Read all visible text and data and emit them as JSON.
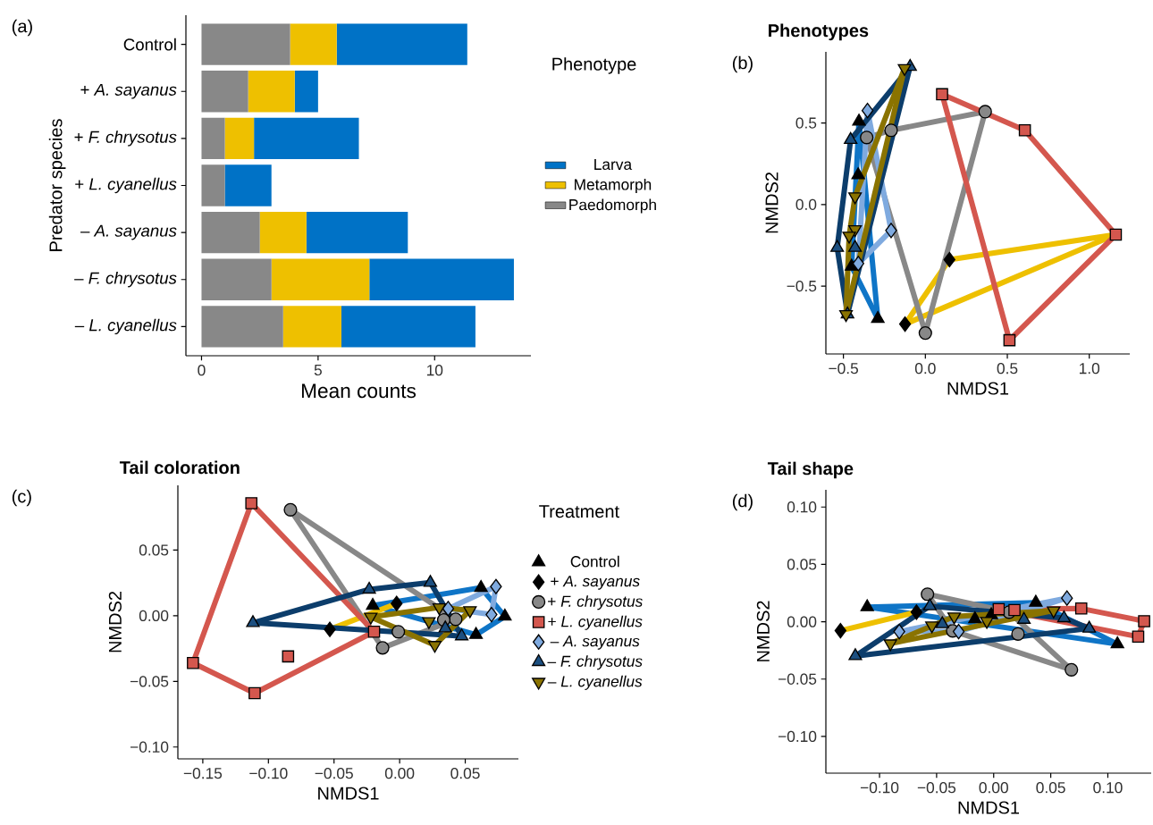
{
  "chart_data": [
    {
      "type": "bar",
      "orientation": "horizontal",
      "stacked": true,
      "annotations": [
        "(a)"
      ],
      "xlabel": "Mean counts",
      "ylabel": "Predator species",
      "legend_title": "Phenotype",
      "legend": "right",
      "categories": [
        "Control",
        "+ *A. sayanus*",
        "+ *F. chrysotus*",
        "+ *L. cyanellus*",
        "– *A. sayanus*",
        "– *F. chrysotus*",
        "– *L. cyanellus*"
      ],
      "xlim": [
        -0.67,
        14.13
      ],
      "xticks": [
        0,
        5,
        10
      ],
      "series": [
        {
          "name": "Paedomorph",
          "color": "#888888",
          "values": [
            3.8,
            2.0,
            1.0,
            1.0,
            2.5,
            3.0,
            3.5
          ]
        },
        {
          "name": "Metamorph",
          "color": "#eec000",
          "values": [
            2.0,
            2.0,
            1.25,
            0,
            2.0,
            4.2,
            2.5
          ]
        },
        {
          "name": "Larva",
          "color": "#0072c6",
          "values": [
            5.6,
            1.0,
            4.5,
            2.0,
            4.35,
            6.2,
            5.75
          ]
        }
      ]
    },
    {
      "type": "scatter",
      "annotations": [
        "(b)"
      ],
      "title": "Phenotypes",
      "xlabel": "NMDS1",
      "ylabel": "NMDS2",
      "xlim": [
        -0.607,
        1.247
      ],
      "ylim": [
        -0.916,
        0.936
      ],
      "xticks": [
        {
          "value": -0.5,
          "label": "−0.5"
        },
        {
          "value": 0,
          "label": "0.0"
        },
        {
          "value": 0.5,
          "label": "0.5"
        },
        {
          "value": 1,
          "label": "1.0"
        }
      ],
      "yticks": [
        {
          "value": -0.5,
          "label": "−0.5"
        },
        {
          "value": 0,
          "label": "0.0"
        },
        {
          "value": 0.5,
          "label": "0.5"
        }
      ],
      "series": [
        {
          "type": "line",
          "color": "#0f75c7",
          "marker": "none",
          "x": [
            -0.45,
            -0.405,
            -0.29
          ],
          "values": [
            -0.38,
            0.51,
            -0.7
          ]
        },
        {
          "type": "line",
          "color": "#0f75c7",
          "marker": "none",
          "x": [
            -0.45,
            -0.29
          ],
          "values": [
            -0.38,
            -0.7
          ]
        },
        {
          "type": "line",
          "color": "#eec000",
          "marker": "none",
          "x": [
            -0.124,
            0.147,
            1.16
          ],
          "values": [
            -0.733,
            -0.338,
            -0.185
          ]
        },
        {
          "type": "line",
          "color": "#eec000",
          "marker": "none",
          "x": [
            -0.124,
            1.16
          ],
          "values": [
            -0.733,
            -0.185
          ]
        },
        {
          "type": "line",
          "color": "#888888",
          "marker": "none",
          "x": [
            -0.358,
            -0.209,
            0.365
          ],
          "values": [
            0.411,
            0.455,
            0.569
          ]
        },
        {
          "type": "line",
          "color": "#888888",
          "marker": "none",
          "x": [
            -0.358,
            0.0,
            0.365
          ],
          "values": [
            0.411,
            -0.788,
            0.569
          ]
        },
        {
          "type": "line",
          "color": "#d4574e",
          "marker": "none",
          "x": [
            0.102,
            0.607,
            1.162
          ],
          "values": [
            0.676,
            0.455,
            -0.185
          ]
        },
        {
          "type": "line",
          "color": "#d4574e",
          "marker": "none",
          "x": [
            0.102,
            0.513,
            1.162
          ],
          "values": [
            0.676,
            -0.832,
            -0.185
          ]
        },
        {
          "type": "line",
          "color": "#7faadf",
          "marker": "none",
          "x": [
            -0.409,
            -0.353,
            -0.209
          ],
          "values": [
            -0.362,
            0.576,
            -0.159
          ]
        },
        {
          "type": "line",
          "color": "#7faadf",
          "marker": "none",
          "x": [
            -0.409,
            -0.209
          ],
          "values": [
            -0.362,
            -0.159
          ]
        },
        {
          "type": "line",
          "color": "#0c3d6b",
          "marker": "none",
          "x": [
            -0.538,
            -0.456,
            -0.093
          ],
          "values": [
            -0.265,
            0.397,
            0.845
          ]
        },
        {
          "type": "line",
          "color": "#0c3d6b",
          "marker": "none",
          "x": [
            -0.538,
            -0.475,
            -0.093
          ],
          "values": [
            -0.265,
            -0.673,
            0.845
          ]
        },
        {
          "type": "line",
          "color": "#8a7300",
          "marker": "none",
          "x": [
            -0.484,
            -0.465,
            -0.429,
            -0.127
          ],
          "values": [
            -0.673,
            -0.192,
            0.049,
            0.835
          ]
        },
        {
          "type": "line",
          "color": "#8a7300",
          "marker": "none",
          "x": [
            -0.484,
            -0.127
          ],
          "values": [
            -0.673,
            0.835
          ]
        },
        {
          "type": "scatter",
          "color": "#000000",
          "marker": "triangle",
          "x": [
            -0.405,
            -0.41,
            -0.45,
            -0.29
          ],
          "values": [
            0.51,
            0.18,
            -0.38,
            -0.7
          ]
        },
        {
          "type": "scatter",
          "color": "#000000",
          "marker": "diamond",
          "x": [
            -0.124,
            0.147
          ],
          "values": [
            -0.733,
            -0.338
          ]
        },
        {
          "type": "scatter",
          "color": "#888888",
          "marker": "circle",
          "x": [
            -0.358,
            -0.209,
            0.365,
            0.0
          ],
          "values": [
            0.411,
            0.455,
            0.569,
            -0.788
          ]
        },
        {
          "type": "scatter",
          "color": "#d4574e",
          "marker": "square",
          "x": [
            0.102,
            0.607,
            1.162,
            0.513
          ],
          "values": [
            0.676,
            0.455,
            -0.185,
            -0.832
          ]
        },
        {
          "type": "scatter",
          "color": "#7faadf",
          "marker": "diamond",
          "x": [
            -0.353,
            -0.209,
            -0.409
          ],
          "values": [
            0.576,
            -0.159,
            -0.362
          ]
        },
        {
          "type": "scatter",
          "color": "#1c4f80",
          "marker": "triangle",
          "x": [
            -0.093,
            -0.456,
            -0.538,
            -0.429,
            -0.475
          ],
          "values": [
            0.845,
            0.397,
            -0.265,
            -0.265,
            -0.673
          ]
        },
        {
          "type": "scatter",
          "color": "#8a7300",
          "marker": "triangle-down",
          "x": [
            -0.127,
            -0.429,
            -0.429,
            -0.465,
            -0.484
          ],
          "values": [
            0.835,
            0.049,
            -0.152,
            -0.192,
            -0.673
          ]
        }
      ]
    },
    {
      "type": "scatter",
      "annotations": [
        "(c)"
      ],
      "title": "Tail coloration",
      "xlabel": "NMDS1",
      "ylabel": "NMDS2",
      "legend": "right",
      "legend_title": "Treatment",
      "xlim": [
        -0.169,
        0.0905
      ],
      "ylim": [
        -0.109,
        0.0993
      ],
      "xticks": [
        {
          "value": -0.15,
          "label": "−0.15"
        },
        {
          "value": -0.1,
          "label": "−0.10"
        },
        {
          "value": -0.05,
          "label": "−0.05"
        },
        {
          "value": 0,
          "label": "0.00"
        },
        {
          "value": 0.05,
          "label": "0.05"
        }
      ],
      "yticks": [
        {
          "value": -0.1,
          "label": "−0.10"
        },
        {
          "value": -0.05,
          "label": "−0.05"
        },
        {
          "value": 0,
          "label": "0.00"
        },
        {
          "value": 0.05,
          "label": "0.05"
        }
      ],
      "series": [
        {
          "type": "line",
          "color": "#0f75c7",
          "marker": "none",
          "x": [
            -0.0205,
            0.062,
            0.0802
          ],
          "values": [
            0.0077,
            0.0213,
            -0.0005
          ]
        },
        {
          "type": "line",
          "color": "#0f75c7",
          "marker": "none",
          "x": [
            -0.0205,
            0.0582,
            0.0802
          ],
          "values": [
            0.0077,
            -0.0145,
            -0.0005
          ]
        },
        {
          "type": "line",
          "color": "#eec000",
          "marker": "none",
          "x": [
            -0.0532,
            -0.0023
          ],
          "values": [
            -0.0104,
            0.0093
          ]
        },
        {
          "type": "line",
          "color": "#888888",
          "marker": "none",
          "x": [
            -0.0832,
            0.0427
          ],
          "values": [
            0.0807,
            -0.0027
          ]
        },
        {
          "type": "line",
          "color": "#888888",
          "marker": "none",
          "x": [
            -0.0832,
            -0.013,
            0.0427
          ],
          "values": [
            0.0807,
            -0.0245,
            -0.0027
          ]
        },
        {
          "type": "line",
          "color": "#d4574e",
          "marker": "none",
          "x": [
            -0.1575,
            -0.113,
            -0.0195
          ],
          "values": [
            -0.036,
            0.0857,
            -0.0122
          ]
        },
        {
          "type": "line",
          "color": "#d4574e",
          "marker": "none",
          "x": [
            -0.1575,
            -0.1105,
            -0.0195
          ],
          "values": [
            -0.036,
            -0.059,
            -0.0122
          ]
        },
        {
          "type": "line",
          "color": "#7faadf",
          "marker": "none",
          "x": [
            0.037,
            0.0734
          ],
          "values": [
            0.0054,
            0.0222
          ]
        },
        {
          "type": "line",
          "color": "#7faadf",
          "marker": "none",
          "x": [
            0.037,
            0.07,
            0.0734
          ],
          "values": [
            0.0054,
            0.0009,
            0.0222
          ]
        },
        {
          "type": "line",
          "color": "#0c3d6b",
          "marker": "none",
          "x": [
            -0.1118,
            -0.0232,
            0.0234,
            0.0473
          ],
          "values": [
            -0.0054,
            0.02,
            0.0252,
            -0.0156
          ]
        },
        {
          "type": "line",
          "color": "#0c3d6b",
          "marker": "none",
          "x": [
            -0.1118,
            0.0473
          ],
          "values": [
            -0.0054,
            -0.0156
          ]
        },
        {
          "type": "line",
          "color": "#8a7300",
          "marker": "none",
          "x": [
            -0.022,
            0.0302,
            0.0536
          ],
          "values": [
            -0.0009,
            0.0063,
            0.0041
          ]
        },
        {
          "type": "line",
          "color": "#8a7300",
          "marker": "none",
          "x": [
            -0.022,
            0.0268,
            0.0536
          ],
          "values": [
            -0.0009,
            -0.0224,
            0.0041
          ]
        },
        {
          "name": "Control",
          "type": "scatter",
          "color": "#000000",
          "marker": "triangle",
          "x": [
            -0.0205,
            0.062,
            0.0802,
            0.0582
          ],
          "values": [
            0.0077,
            0.0213,
            -0.0005,
            -0.0145
          ]
        },
        {
          "name": "+ *A. sayanus*",
          "type": "scatter",
          "color": "#000000",
          "marker": "diamond",
          "x": [
            -0.0532,
            -0.0023
          ],
          "values": [
            -0.0104,
            0.0093
          ]
        },
        {
          "name": "+ *F. chrysotus*",
          "type": "scatter",
          "color": "#888888",
          "marker": "circle",
          "x": [
            -0.0832,
            0.0427,
            -0.013,
            -0.001,
            0.0336
          ],
          "values": [
            0.0807,
            -0.0027,
            -0.0245,
            -0.0122,
            -0.0032
          ]
        },
        {
          "name": "+ *L. cyanellus*",
          "type": "scatter",
          "color": "#d4574e",
          "marker": "square",
          "x": [
            -0.113,
            -0.0195,
            -0.1105,
            -0.1575,
            -0.085
          ],
          "values": [
            0.0857,
            -0.0122,
            -0.059,
            -0.036,
            -0.031
          ]
        },
        {
          "name": "– *A. sayanus*",
          "type": "scatter",
          "color": "#7faadf",
          "marker": "diamond",
          "x": [
            0.037,
            0.0734,
            0.07
          ],
          "values": [
            0.0054,
            0.0222,
            0.0009
          ]
        },
        {
          "name": "– *F. chrysotus*",
          "type": "scatter",
          "color": "#1c4f80",
          "marker": "triangle",
          "x": [
            -0.1118,
            -0.0232,
            0.0234,
            0.0473,
            0.0348
          ],
          "values": [
            -0.0054,
            0.02,
            0.0252,
            -0.0156,
            -0.0095
          ]
        },
        {
          "name": "– *L. cyanellus*",
          "type": "scatter",
          "color": "#8a7300",
          "marker": "triangle-down",
          "x": [
            -0.022,
            0.0302,
            0.0536,
            0.0268,
            0.0223
          ],
          "values": [
            -0.0009,
            0.0063,
            0.0041,
            -0.0224,
            -0.0043
          ]
        }
      ]
    },
    {
      "type": "scatter",
      "annotations": [
        "(d)"
      ],
      "title": "Tail shape",
      "xlabel": "NMDS1",
      "ylabel": "NMDS2",
      "xlim": [
        -0.147,
        0.138
      ],
      "ylim": [
        -0.132,
        0.115
      ],
      "xticks": [
        {
          "value": -0.1,
          "label": "−0.10"
        },
        {
          "value": -0.05,
          "label": "−0.05"
        },
        {
          "value": 0,
          "label": "0.00"
        },
        {
          "value": 0.05,
          "label": "0.05"
        },
        {
          "value": 0.1,
          "label": "0.10"
        }
      ],
      "yticks": [
        {
          "value": -0.1,
          "label": "−0.10"
        },
        {
          "value": -0.05,
          "label": "−0.05"
        },
        {
          "value": 0,
          "label": "0.00"
        },
        {
          "value": 0.05,
          "label": "0.05"
        },
        {
          "value": 0.1,
          "label": "0.10"
        }
      ],
      "series": [
        {
          "type": "line",
          "color": "#0f75c7",
          "marker": "none",
          "x": [
            -0.1108,
            0.0369,
            0.1084
          ],
          "values": [
            0.0128,
            0.0167,
            -0.0195
          ]
        },
        {
          "type": "line",
          "color": "#0f75c7",
          "marker": "none",
          "x": [
            -0.1108,
            0.1084
          ],
          "values": [
            0.0128,
            -0.0195
          ]
        },
        {
          "type": "line",
          "color": "#eec000",
          "marker": "none",
          "x": [
            -0.1342,
            -0.0676
          ],
          "values": [
            -0.0078,
            0.0084
          ]
        },
        {
          "type": "line",
          "color": "#888888",
          "marker": "none",
          "x": [
            -0.058,
            0.0135,
            0.0681
          ],
          "values": [
            0.024,
            0.0084,
            -0.0419
          ]
        },
        {
          "type": "line",
          "color": "#888888",
          "marker": "none",
          "x": [
            -0.058,
            -0.0359,
            0.0681
          ],
          "values": [
            0.024,
            -0.008,
            -0.0419
          ]
        },
        {
          "type": "line",
          "color": "#d4574e",
          "marker": "none",
          "x": [
            0.0044,
            0.0767,
            0.1318
          ],
          "values": [
            0.0109,
            0.0115,
            0.0005
          ]
        },
        {
          "type": "line",
          "color": "#d4574e",
          "marker": "none",
          "x": [
            0.0044,
            0.1266,
            0.1318
          ],
          "values": [
            0.0109,
            -0.013,
            0.0005
          ]
        },
        {
          "type": "line",
          "color": "#7faadf",
          "marker": "none",
          "x": [
            -0.0827,
            0.0642
          ],
          "values": [
            -0.0086,
            0.0206
          ]
        },
        {
          "type": "line",
          "color": "#7faadf",
          "marker": "none",
          "x": [
            -0.0827,
            -0.0307,
            0.0642
          ],
          "values": [
            -0.0086,
            -0.0086,
            0.0206
          ]
        },
        {
          "type": "line",
          "color": "#0c3d6b",
          "marker": "none",
          "x": [
            -0.1212,
            -0.0559,
            0.0616,
            0.0837
          ],
          "values": [
            -0.0299,
            0.0136,
            0.0032,
            -0.0059
          ]
        },
        {
          "type": "line",
          "color": "#0c3d6b",
          "marker": "none",
          "x": [
            -0.1212,
            0.0837
          ],
          "values": [
            -0.0299,
            -0.0059
          ]
        },
        {
          "type": "line",
          "color": "#8a7300",
          "marker": "none",
          "x": [
            -0.0905,
            -0.0346,
            0.0525
          ],
          "values": [
            -0.019,
            0.0045,
            0.0097
          ]
        },
        {
          "type": "line",
          "color": "#8a7300",
          "marker": "none",
          "x": [
            -0.0905,
            0.0525
          ],
          "values": [
            -0.019,
            0.0097
          ]
        },
        {
          "type": "scatter",
          "color": "#000000",
          "marker": "triangle",
          "x": [
            -0.1108,
            0.0369,
            0.1084,
            -0.0164,
            -0.0021
          ],
          "values": [
            0.0128,
            0.0167,
            -0.0195,
            0.0023,
            0.0058
          ]
        },
        {
          "type": "scatter",
          "color": "#000000",
          "marker": "diamond",
          "x": [
            -0.1342,
            -0.0676
          ],
          "values": [
            -0.0078,
            0.0084
          ]
        },
        {
          "type": "scatter",
          "color": "#888888",
          "marker": "circle",
          "x": [
            -0.058,
            0.0135,
            0.0681,
            -0.0359,
            0.0213
          ],
          "values": [
            0.024,
            0.0084,
            -0.0419,
            -0.008,
            -0.0107
          ]
        },
        {
          "type": "scatter",
          "color": "#d4574e",
          "marker": "square",
          "x": [
            0.0044,
            0.0767,
            0.1318,
            0.1266,
            0.0182
          ],
          "values": [
            0.0109,
            0.0115,
            0.0005,
            -0.013,
            0.0102
          ]
        },
        {
          "type": "scatter",
          "color": "#7faadf",
          "marker": "diamond",
          "x": [
            -0.0827,
            0.0642,
            -0.0307
          ],
          "values": [
            -0.0086,
            0.0206,
            -0.0086
          ]
        },
        {
          "type": "scatter",
          "color": "#1c4f80",
          "marker": "triangle",
          "x": [
            -0.1212,
            -0.0559,
            0.0616,
            0.0837,
            -0.045,
            0.0265
          ],
          "values": [
            -0.0299,
            0.0136,
            0.0032,
            -0.0059,
            -0.002,
            0.0018
          ]
        },
        {
          "type": "scatter",
          "color": "#8a7300",
          "marker": "triangle-down",
          "x": [
            -0.0905,
            -0.0346,
            0.0525,
            -0.0541,
            -0.006
          ],
          "values": [
            -0.019,
            0.0045,
            0.0097,
            -0.0034,
            0.0005
          ]
        }
      ]
    }
  ]
}
